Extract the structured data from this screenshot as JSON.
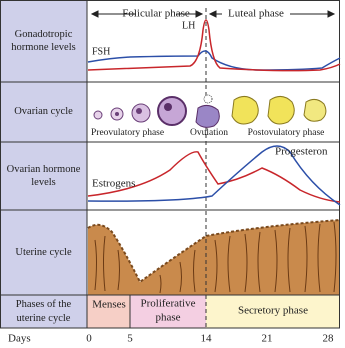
{
  "header": {
    "follicular": "Folicular phase",
    "luteal": "Luteal phase"
  },
  "rows": [
    "Gonadotropic hormone levels",
    "Ovarian cycle",
    "Ovarian hormone levels",
    "Uterine cycle",
    "Phases of the uterine cycle"
  ],
  "curves": {
    "fsh": "FSH",
    "lh": "LH",
    "estrogen": "Estrogens",
    "progesterone": "Progesteron"
  },
  "ovarian": {
    "preovulatory": "Preovulatory phase",
    "ovulation": "Ovulation",
    "postovulatory": "Postovulatory phase"
  },
  "phases": {
    "menses": "Menses",
    "proliferative": [
      "Proliferative",
      "phase"
    ],
    "secretory": "Secretory phase"
  },
  "days": {
    "label": "Days",
    "ticks": [
      "0",
      "5",
      "14",
      "21",
      "28"
    ]
  }
}
